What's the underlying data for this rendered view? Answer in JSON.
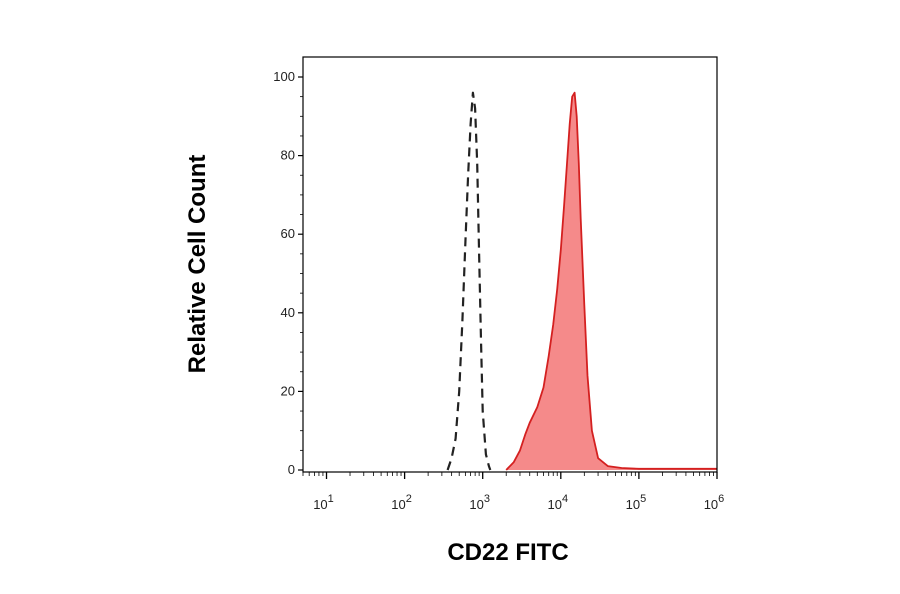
{
  "chart_data": {
    "type": "area",
    "title": "",
    "xlabel": "CD22 FITC",
    "ylabel": "Relative Cell Count",
    "xscale": "log",
    "xlim": [
      5,
      1000000
    ],
    "ylim": [
      0,
      100
    ],
    "grid": false,
    "legend": "none",
    "x_ticks": [
      {
        "base": "10",
        "exp": "1",
        "value": 10
      },
      {
        "base": "10",
        "exp": "2",
        "value": 100
      },
      {
        "base": "10",
        "exp": "3",
        "value": 1000
      },
      {
        "base": "10",
        "exp": "4",
        "value": 10000
      },
      {
        "base": "10",
        "exp": "5",
        "value": 100000
      },
      {
        "base": "10",
        "exp": "6",
        "value": 1000000
      }
    ],
    "y_ticks": [
      0,
      20,
      40,
      60,
      80,
      100
    ],
    "series": [
      {
        "style": "dashed",
        "color": "#222222",
        "fill": "none",
        "x": [
          355,
          400,
          450,
          500,
          550,
          600,
          650,
          700,
          750,
          800,
          850,
          900,
          950,
          1000,
          1100,
          1200,
          1250
        ],
        "y": [
          0,
          3,
          8,
          20,
          38,
          58,
          75,
          88,
          96,
          92,
          78,
          55,
          33,
          15,
          4,
          1,
          0
        ]
      },
      {
        "style": "solid",
        "color": "#d42020",
        "fill": "#f58a8a",
        "x": [
          2000,
          2500,
          3000,
          3500,
          4000,
          5000,
          6000,
          7000,
          8000,
          9000,
          10000,
          11000,
          12000,
          13000,
          14000,
          15000,
          16000,
          17000,
          18000,
          20000,
          22000,
          25000,
          30000,
          40000,
          60000,
          100000,
          1000000
        ],
        "y": [
          0,
          2,
          5,
          9,
          12,
          16,
          21,
          29,
          37,
          46,
          56,
          67,
          78,
          88,
          95,
          96,
          90,
          78,
          64,
          42,
          24,
          10,
          3,
          1,
          0.5,
          0.3,
          0.3
        ]
      }
    ]
  }
}
